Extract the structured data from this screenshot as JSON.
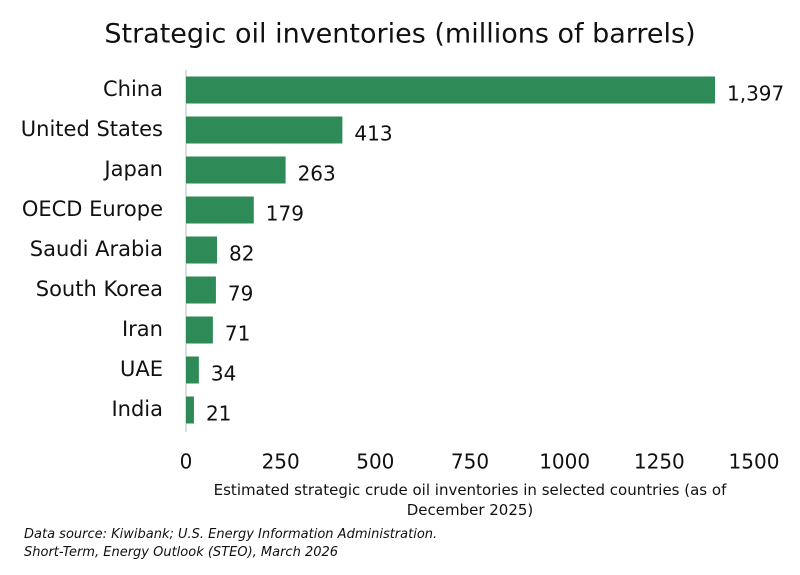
{
  "chart_data": {
    "type": "bar",
    "orientation": "horizontal",
    "title": "Strategic oil inventories (millions of barrels)",
    "categories": [
      "China",
      "United States",
      "Japan",
      "OECD Europe",
      "Saudi Arabia",
      "South Korea",
      "Iran",
      "UAE",
      "India"
    ],
    "values": [
      1397,
      413,
      263,
      179,
      82,
      79,
      71,
      34,
      21
    ],
    "value_labels": [
      "1,397",
      "413",
      "263",
      "179",
      "82",
      "79",
      "71",
      "34",
      "21"
    ],
    "color": "#2e8b57",
    "xlim": [
      0,
      1500
    ],
    "xticks": [
      0,
      250,
      500,
      750,
      1000,
      1250,
      1500
    ],
    "grid": false,
    "x_label": "Estimated strategic crude oil inventories in selected countries (as of December 2025)",
    "source": [
      "Data source: Kiwibank; U.S. Energy Information Administration.",
      "Short-Term, Energy Outlook (STEO), March 2026"
    ]
  }
}
